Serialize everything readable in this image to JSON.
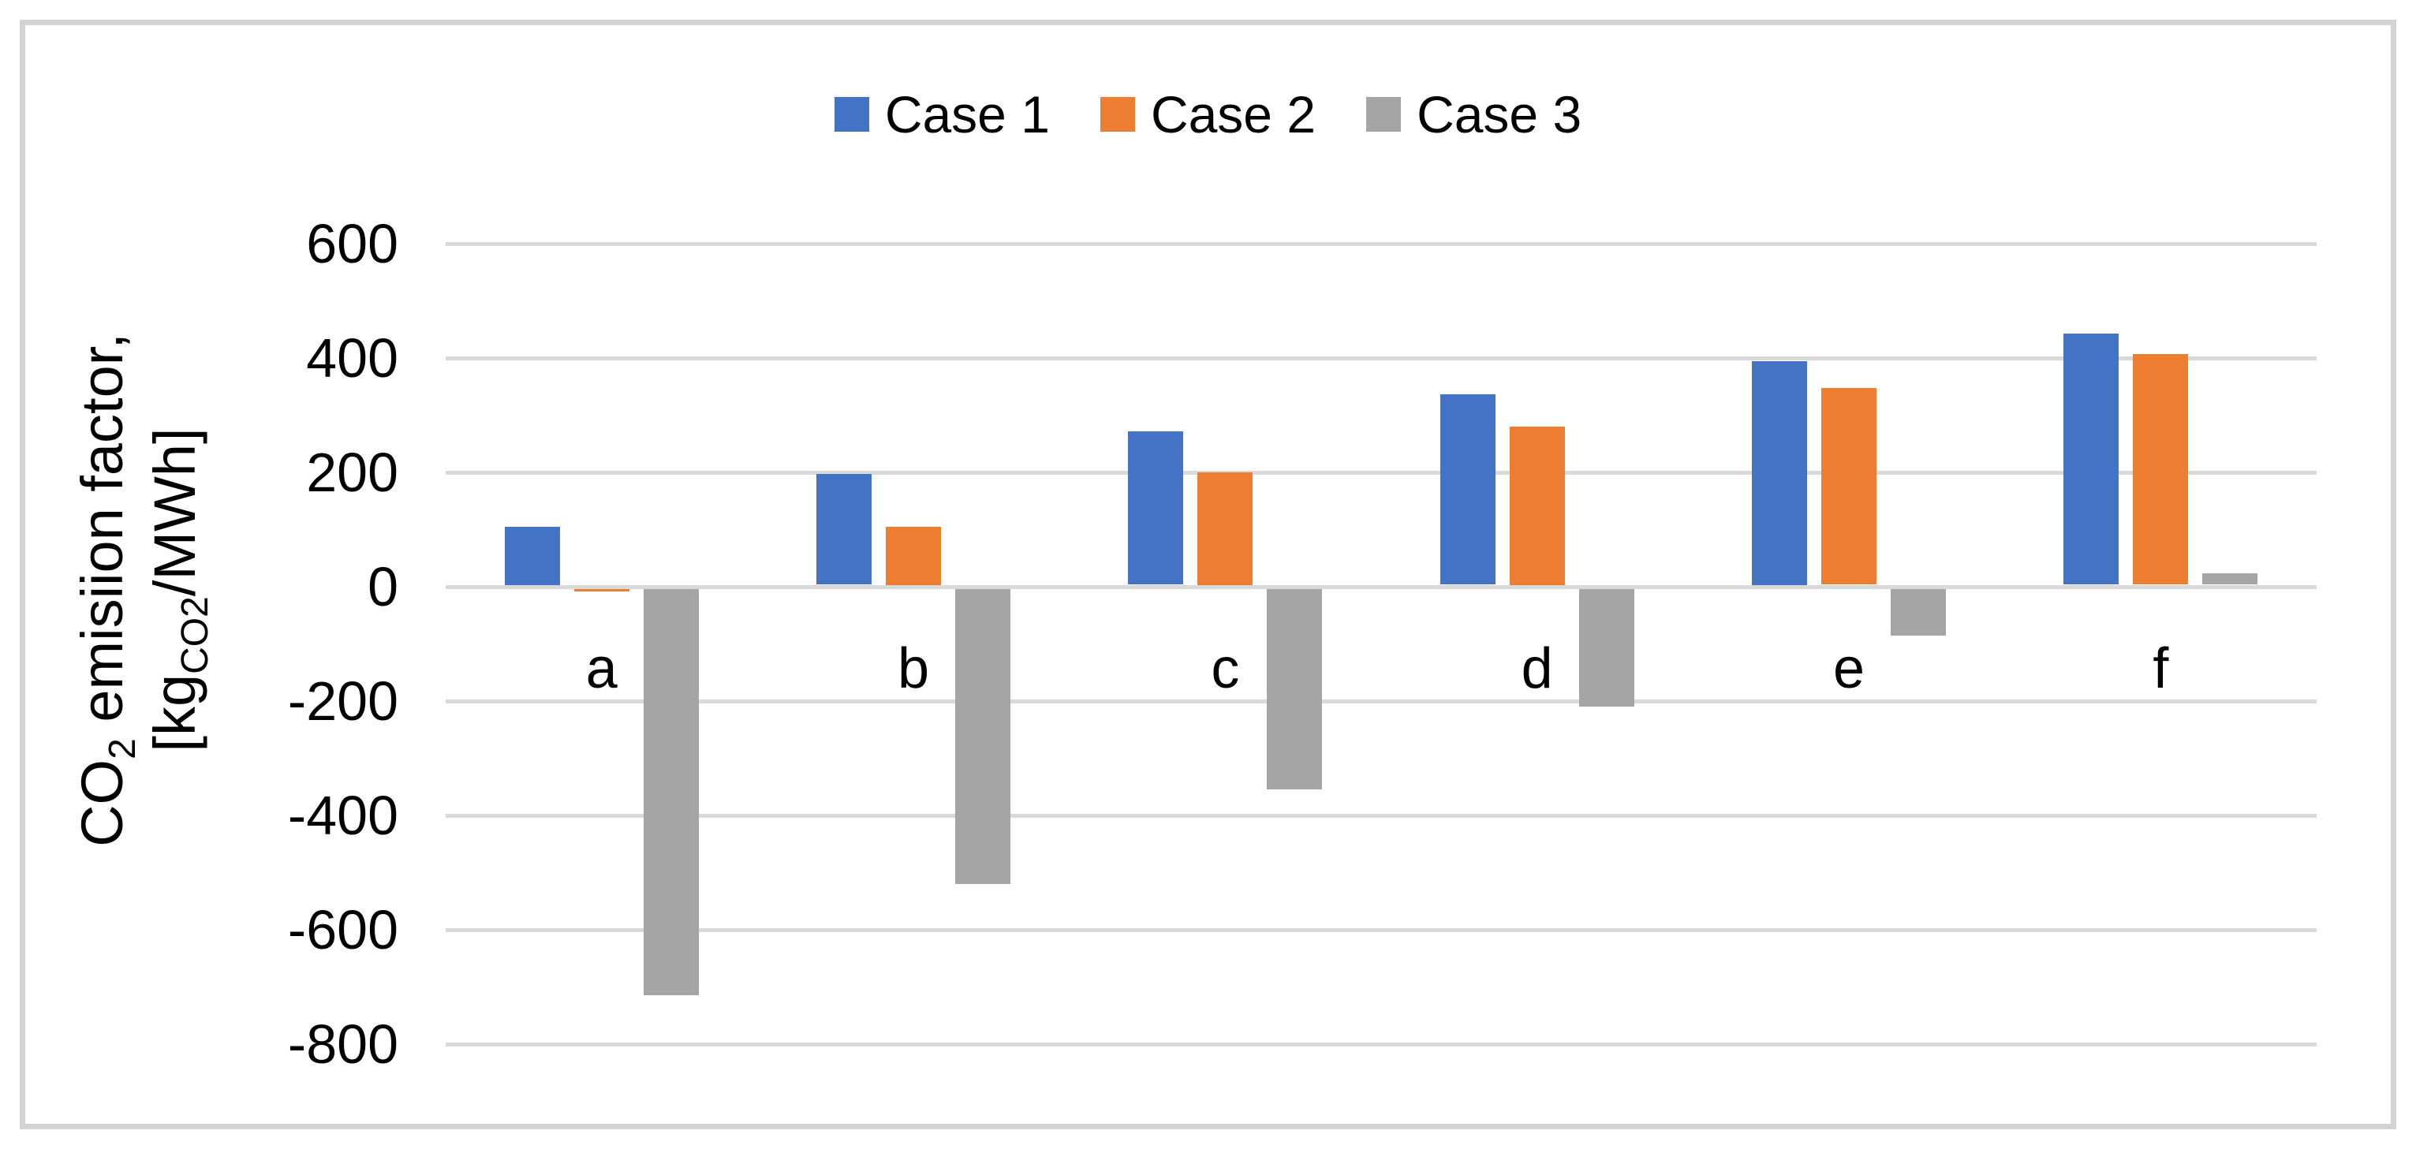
{
  "figure": {
    "background": "#FFFFFF",
    "border_color": "#D3D3D3"
  },
  "legend": {
    "position": "top-center",
    "items": [
      {
        "label": "Case 1",
        "color": "#4472C4"
      },
      {
        "label": "Case 2",
        "color": "#ED7D31"
      },
      {
        "label": "Case 3",
        "color": "#A5A5A5"
      }
    ]
  },
  "y_axis": {
    "title_line1": {
      "pre": "CO",
      "sub": "2",
      "post": " emisiion factor,"
    },
    "title_line2": {
      "pre": "[kg",
      "sub": "CO2",
      "post": "/MWh]"
    },
    "max": 600,
    "min": -800,
    "step": 200,
    "tick_labels": [
      "600",
      "400",
      "200",
      "0",
      "-200",
      "-400",
      "-600",
      "-800"
    ],
    "gridline_color": "#D9D9D9"
  },
  "chart_data": {
    "type": "bar",
    "title": "",
    "xlabel": "",
    "ylabel": "CO2 emisiion factor, [kgCO2/MWh]",
    "categories": [
      "a",
      "b",
      "c",
      "d",
      "e",
      "f"
    ],
    "series": [
      {
        "name": "Case 1",
        "color": "#4472C4",
        "values": [
          105,
          197,
          272,
          337,
          395,
          443
        ]
      },
      {
        "name": "Case 2",
        "color": "#ED7D31",
        "values": [
          -5,
          105,
          200,
          280,
          348,
          407
        ]
      },
      {
        "name": "Case 3",
        "color": "#A5A5A5",
        "values": [
          -715,
          -520,
          -355,
          -210,
          -85,
          23
        ]
      }
    ],
    "ylim": [
      -800,
      600
    ],
    "grid": true,
    "legend_position": "top"
  }
}
